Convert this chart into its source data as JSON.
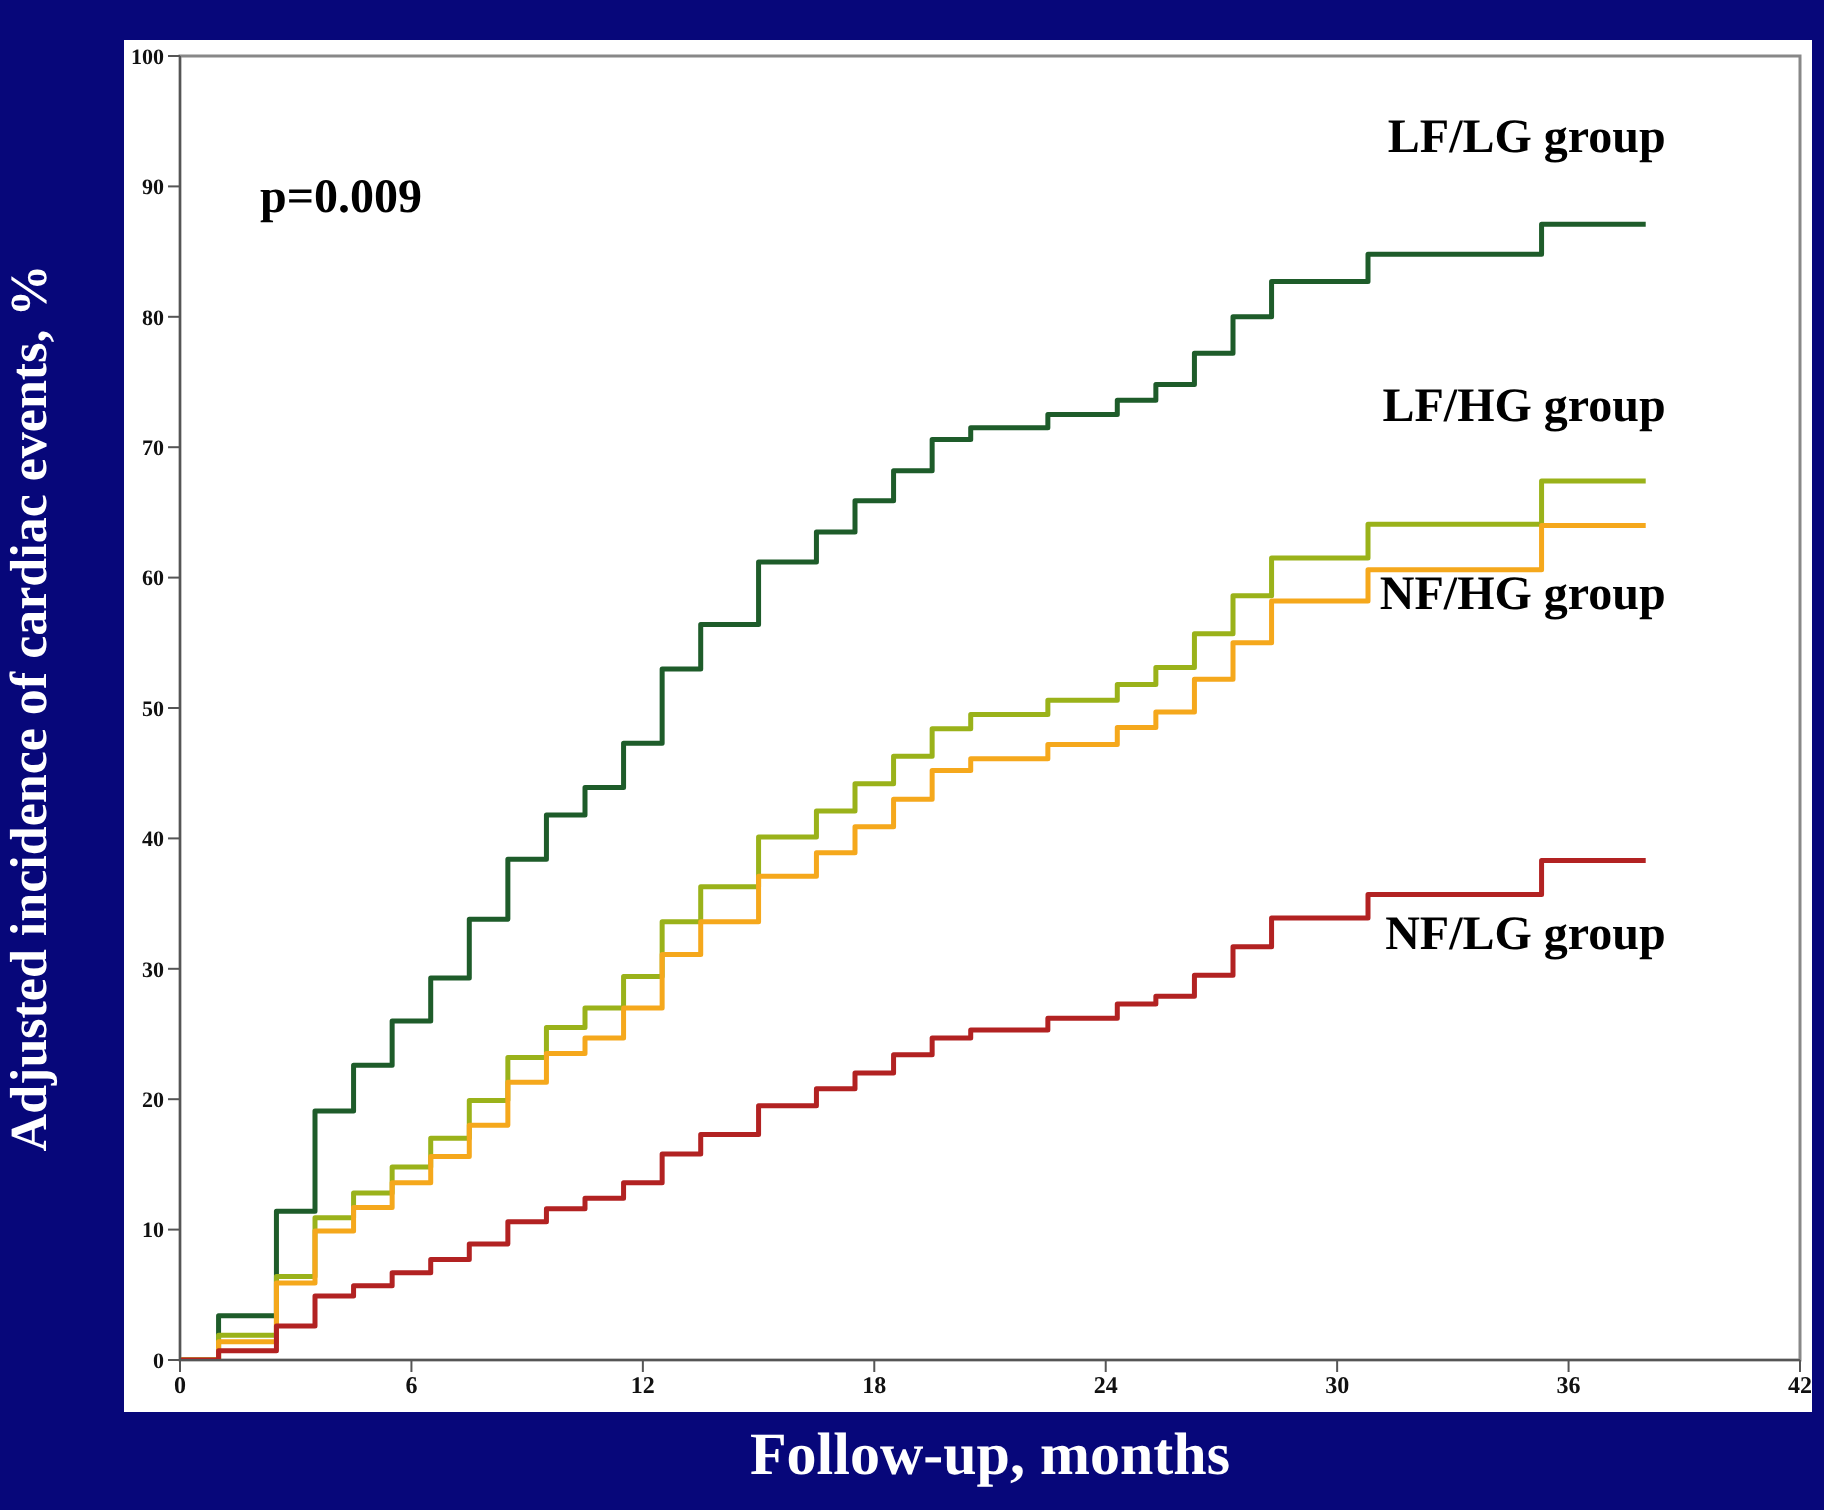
{
  "chart_data": {
    "type": "step",
    "xlabel": "Follow-up, months",
    "ylabel": "Adjusted incidence of cardiac events, %",
    "annotations": [
      "p=0.009"
    ],
    "x": [
      0,
      1,
      2.5,
      3.5,
      4.5,
      5.5,
      6.5,
      7.5,
      8.5,
      9.5,
      10.5,
      11.5,
      12.5,
      13.5,
      15,
      16.5,
      17.5,
      18.5,
      19.5,
      20.5,
      22.5,
      24.3,
      25.3,
      26.3,
      27.3,
      28.3,
      30.8,
      35.3,
      38
    ],
    "series": [
      {
        "name": "LF/LG group",
        "color": "#1e5c2a",
        "values": [
          0,
          3.4,
          11.4,
          19.1,
          22.6,
          26,
          29.3,
          33.8,
          38.4,
          41.8,
          43.9,
          47.3,
          53,
          56.4,
          61.2,
          63.5,
          65.9,
          68.2,
          70.6,
          71.5,
          72.5,
          73.6,
          74.8,
          77.2,
          80,
          82.7,
          84.8,
          87.1,
          87.1
        ]
      },
      {
        "name": "LF/HG group",
        "color": "#9ab21a",
        "values": [
          0,
          1.9,
          6.4,
          10.9,
          12.8,
          14.8,
          17,
          19.9,
          23.2,
          25.5,
          27,
          29.4,
          33.6,
          36.3,
          40.1,
          42.1,
          44.2,
          46.3,
          48.4,
          49.5,
          50.6,
          51.8,
          53.1,
          55.7,
          58.6,
          61.5,
          64.1,
          67.4,
          67.4
        ]
      },
      {
        "name": "NF/HG group",
        "color": "#f5a81c",
        "values": [
          0,
          1.4,
          5.9,
          9.9,
          11.7,
          13.6,
          15.6,
          18,
          21.3,
          23.5,
          24.7,
          27,
          31.1,
          33.6,
          37.1,
          38.9,
          40.9,
          43,
          45.2,
          46.1,
          47.2,
          48.5,
          49.7,
          52.2,
          55,
          58.2,
          60.6,
          64,
          64
        ]
      },
      {
        "name": "NF/LG group",
        "color": "#b22222",
        "values": [
          0,
          0.7,
          2.6,
          4.9,
          5.7,
          6.7,
          7.7,
          8.9,
          10.6,
          11.6,
          12.4,
          13.6,
          15.8,
          17.3,
          19.5,
          20.8,
          22,
          23.4,
          24.7,
          25.3,
          26.2,
          27.3,
          27.9,
          29.5,
          31.7,
          33.9,
          35.7,
          38.3,
          38.3
        ]
      }
    ],
    "xlim": [
      0,
      42
    ],
    "xticks": [
      0,
      6,
      12,
      18,
      24,
      30,
      36,
      42
    ],
    "ylim": [
      0,
      100
    ],
    "yticks": [
      0,
      10,
      20,
      30,
      40,
      50,
      60,
      70,
      80,
      90,
      100
    ],
    "grid": false,
    "legend": false,
    "marker": "none",
    "line_style": "solid"
  }
}
